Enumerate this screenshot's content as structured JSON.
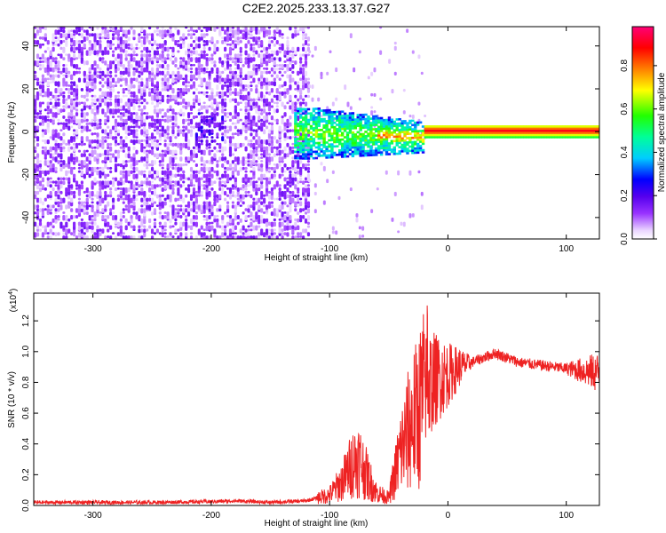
{
  "title": "C2E2.2025.233.13.37.G27",
  "chart_data": [
    {
      "type": "heatmap",
      "name": "spectrogram",
      "xlabel": "Height of straight line (km)",
      "ylabel": "Frequency (Hz)",
      "xlim": [
        -350,
        128
      ],
      "ylim": [
        -50,
        49
      ],
      "xticks": [
        -300,
        -200,
        -100,
        0,
        100
      ],
      "xtick_labels": [
        "-300",
        "-200",
        "-100",
        "0",
        "100"
      ],
      "yticks": [
        -40,
        -20,
        0,
        20,
        40
      ],
      "ytick_labels": [
        "-40",
        "-20",
        "0",
        "20",
        "40"
      ],
      "colorbar": {
        "label": "Normalized spectral amplitude",
        "range": [
          0.0,
          0.98
        ],
        "ticks": [
          0.0,
          0.2,
          0.4,
          0.6,
          0.8
        ],
        "tick_labels": [
          "0.0",
          "0.2",
          "0.4",
          "0.6",
          "0.8"
        ],
        "colormap": "rainbow (white-violet-blue-cyan-green-yellow-red-magenta)"
      },
      "features": {
        "noise_region_km": [
          -350,
          -118
        ],
        "signal_band_center_hz": 0,
        "signal_band_halfwidth_hz": 2,
        "peak_amplitude": 0.92
      }
    },
    {
      "type": "line",
      "name": "snr",
      "xlabel": "Height of straight line (km)",
      "ylabel": "SNR (10 * v/v)",
      "y_scale_label": "(x10",
      "y_scale_exponent": "4",
      "y_scale_suffix": ")",
      "xlim": [
        -350,
        128
      ],
      "ylim": [
        0,
        1.38
      ],
      "xticks": [
        -300,
        -200,
        -100,
        0,
        100
      ],
      "xtick_labels": [
        "-300",
        "-200",
        "-100",
        "0",
        "100"
      ],
      "yticks": [
        0.0,
        0.2,
        0.4,
        0.6,
        0.8,
        1.0,
        1.2
      ],
      "ytick_labels": [
        "0.0",
        "0.2",
        "0.4",
        "0.6",
        "0.8",
        "1.0",
        "1.2"
      ],
      "color": "#ee2222",
      "series": [
        {
          "name": "SNR",
          "x": [
            -350,
            -300,
            -250,
            -200,
            -180,
            -150,
            -120,
            -100,
            -90,
            -80,
            -75,
            -70,
            -60,
            -50,
            -40,
            -30,
            -25,
            -20,
            -16,
            -10,
            0,
            10,
            20,
            30,
            40,
            50,
            60,
            80,
            100,
            120,
            128
          ],
          "y": [
            0.02,
            0.02,
            0.02,
            0.025,
            0.03,
            0.02,
            0.03,
            0.07,
            0.15,
            0.28,
            0.3,
            0.22,
            0.08,
            0.05,
            0.35,
            0.55,
            0.6,
            0.75,
            0.8,
            0.82,
            0.85,
            0.9,
            0.93,
            0.96,
            0.99,
            0.96,
            0.93,
            0.91,
            0.89,
            0.87,
            0.86
          ]
        }
      ]
    }
  ]
}
